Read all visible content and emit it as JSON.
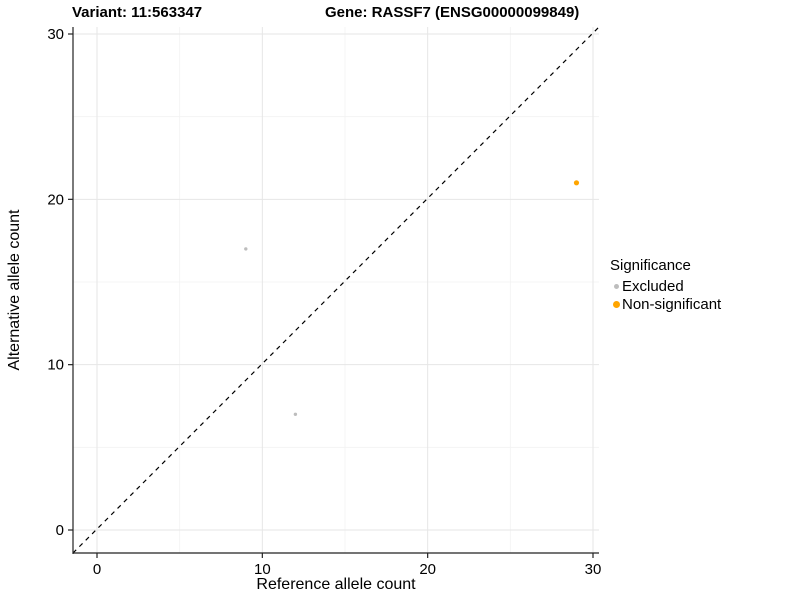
{
  "figure": {
    "variant_title": "Variant: 11:563347",
    "gene_title": "Gene: RASSF7 (ENSG00000099849)"
  },
  "axes": {
    "x": {
      "label": "Reference allele count",
      "ticks": [
        0,
        10,
        20,
        30
      ],
      "minor_ticks": [
        5,
        15,
        25
      ]
    },
    "y": {
      "label": "Alternative allele count",
      "ticks": [
        0,
        10,
        20,
        30
      ],
      "minor_ticks": [
        5,
        15,
        25
      ]
    }
  },
  "legend": {
    "title": "Significance",
    "items": [
      {
        "label": "Excluded",
        "color": "#BDBDBD"
      },
      {
        "label": "Non-significant",
        "color": "#FFA500"
      }
    ]
  },
  "style": {
    "grid_major": "#E6E6E6",
    "grid_minor": "#F2F2F2",
    "axis_color": "#222222",
    "identity_line_color": "#000000",
    "excluded_color": "#BDBDBD",
    "non_significant_color": "#FFA500"
  },
  "chart_data": {
    "type": "scatter",
    "title_left": "Variant: 11:563347",
    "title_right": "Gene: RASSF7 (ENSG00000099849)",
    "xlabel": "Reference allele count",
    "ylabel": "Alternative allele count",
    "xlim": [
      0,
      30
    ],
    "ylim": [
      0,
      30
    ],
    "x_ticks": [
      0,
      10,
      20,
      30
    ],
    "y_ticks": [
      0,
      10,
      20,
      30
    ],
    "grid": true,
    "legend_position": "right",
    "legend_title": "Significance",
    "reference_line": {
      "type": "identity y=x",
      "style": "dashed",
      "color": "#000000"
    },
    "series": [
      {
        "name": "Excluded",
        "color": "#BDBDBD",
        "points": [
          {
            "x": 9,
            "y": 17
          },
          {
            "x": 12,
            "y": 7
          }
        ]
      },
      {
        "name": "Non-significant",
        "color": "#FFA500",
        "points": [
          {
            "x": 29,
            "y": 21
          }
        ]
      }
    ]
  }
}
